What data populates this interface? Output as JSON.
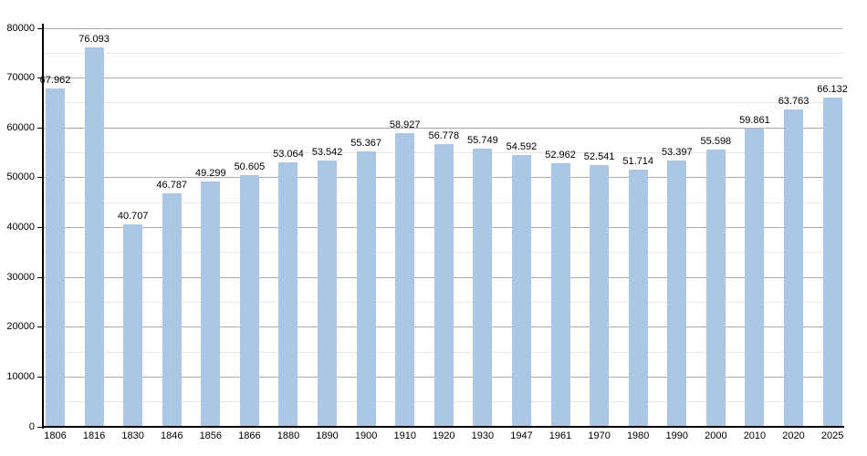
{
  "chart_data": {
    "type": "bar",
    "title": "",
    "xlabel": "",
    "ylabel": "",
    "categories": [
      "1806",
      "1816",
      "1830",
      "1846",
      "1856",
      "1866",
      "1880",
      "1890",
      "1900",
      "1910",
      "1920",
      "1930",
      "1947",
      "1961",
      "1970",
      "1980",
      "1990",
      "2000",
      "2010",
      "2020",
      "2025"
    ],
    "values": [
      67962,
      76093,
      40707,
      46787,
      49299,
      50605,
      53064,
      53542,
      55367,
      58927,
      56778,
      55749,
      54592,
      52962,
      52541,
      51714,
      53397,
      55598,
      59861,
      63763,
      66132
    ],
    "value_labels": [
      "67.962",
      "76.093",
      "40.707",
      "46.787",
      "49.299",
      "50.605",
      "53.064",
      "53.542",
      "55.367",
      "58.927",
      "56.778",
      "55.749",
      "54.592",
      "52.962",
      "52.541",
      "51.714",
      "53.397",
      "55.598",
      "59.861",
      "63.763",
      "66.132"
    ],
    "ylim": [
      0,
      80000
    ],
    "y_major_step": 10000,
    "y_minor_step": 5000,
    "y_tick_labels": [
      "0",
      "10000",
      "20000",
      "30000",
      "40000",
      "50000",
      "60000",
      "70000",
      "80000"
    ],
    "grid": "horizontal major+minor",
    "legend_position": "none",
    "colors": {
      "bar": "#aac7e6",
      "grid_major": "#aaaaaa",
      "grid_minor": "#e7e7e7",
      "axis": "#000000",
      "text": "#000000",
      "background": "#ffffff"
    }
  }
}
